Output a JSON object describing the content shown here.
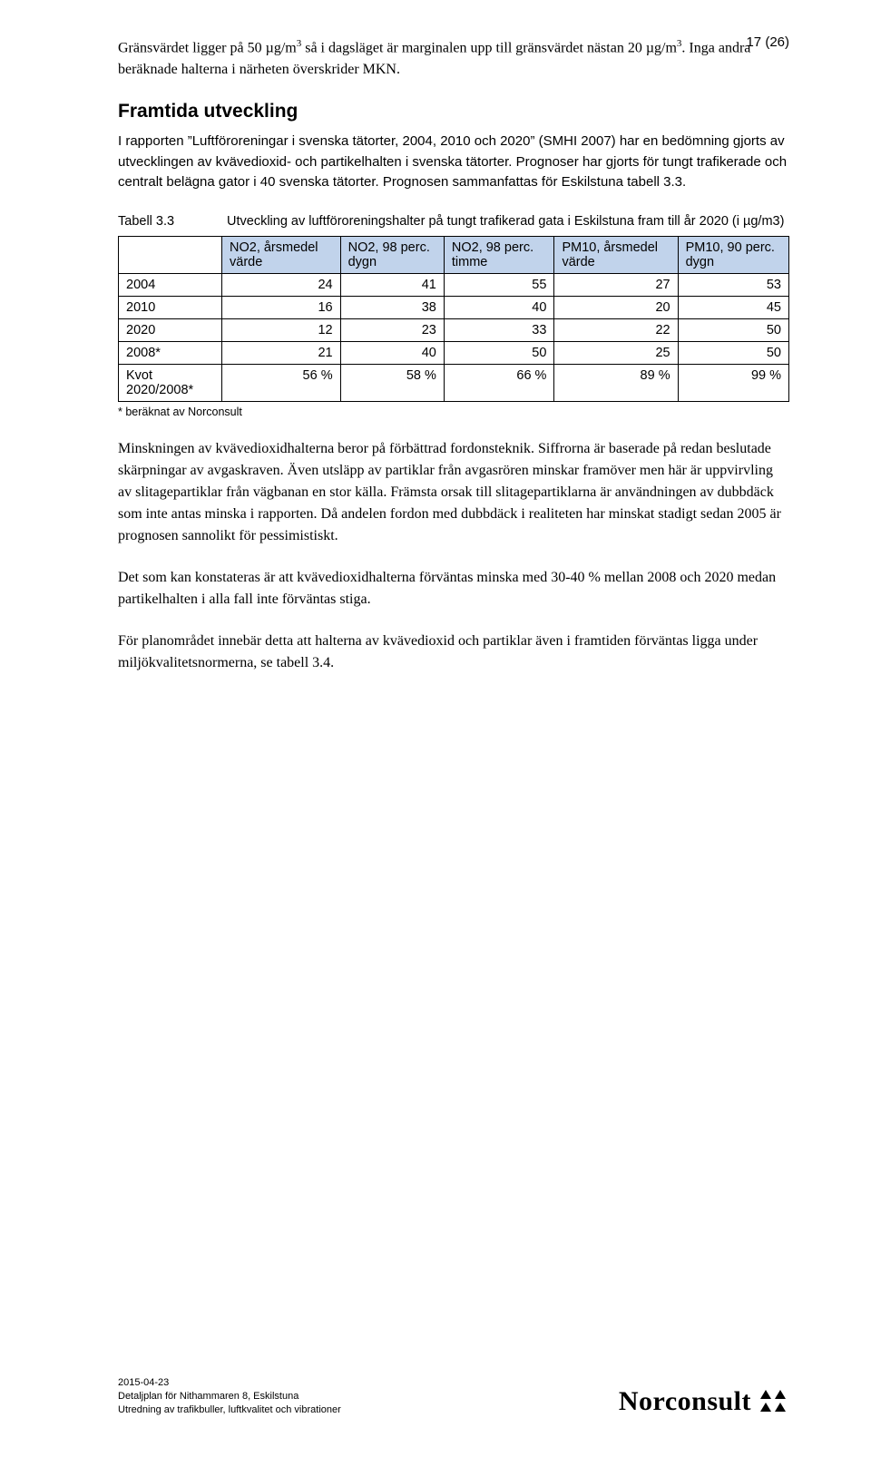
{
  "page_number": "17 (26)",
  "intro_para_html": "Gränsvärdet ligger på 50 µg/m<span class='sup'>3</span> så i dagsläget är marginalen upp till gränsvärdet nästan 20 µg/m<span class='sup'>3</span>. Inga andra beräknade halterna i närheten överskrider MKN.",
  "section_heading": "Framtida utveckling",
  "section_para": "I rapporten ”Luftföroreningar i svenska tätorter, 2004, 2010 och 2020” (SMHI 2007) har en bedömning gjorts av utvecklingen av kvävedioxid- och partikelhalten i svenska tätorter. Prognoser har gjorts för tungt trafikerade och centralt belägna gator i 40 svenska tätorter. Prognosen sammanfattas för Eskilstuna tabell 3.3.",
  "table": {
    "label": "Tabell 3.3",
    "caption_html": "Utveckling av luftföroreningshalter på tungt trafikerad gata i Eskilstuna fram till år 2020 (i µg/m<span class='sup'>3</span>)",
    "header_bg": "#c1d3eb",
    "border_color": "#000000",
    "columns": [
      "NO2, årsmedel värde",
      "NO2, 98 perc. dygn",
      "NO2, 98 perc. timme",
      "PM10, årsmedel värde",
      "PM10, 90 perc. dygn"
    ],
    "rows": [
      {
        "label": "2004",
        "vals": [
          "24",
          "41",
          "55",
          "27",
          "53"
        ]
      },
      {
        "label": "2010",
        "vals": [
          "16",
          "38",
          "40",
          "20",
          "45"
        ]
      },
      {
        "label": "2020",
        "vals": [
          "12",
          "23",
          "33",
          "22",
          "50"
        ]
      },
      {
        "label": "2008*",
        "vals": [
          "21",
          "40",
          "50",
          "25",
          "50"
        ]
      },
      {
        "label": "Kvot 2020/2008*",
        "vals": [
          "56 %",
          "58 %",
          "66 %",
          "89 %",
          "99 %"
        ]
      }
    ],
    "footnote": "* beräknat av Norconsult"
  },
  "body_paras": [
    "Minskningen av kvävedioxidhalterna beror på förbättrad fordonsteknik. Siffrorna är baserade på redan beslutade skärpningar av avgaskraven. Även utsläpp av partiklar från avgasrören minskar framöver men här är uppvirvling av slitagepartiklar från vägbanan en stor källa. Främsta orsak till slitagepartiklarna är användningen av dubbdäck som inte antas minska i rapporten. Då andelen fordon med dubbdäck i realiteten har minskat stadigt sedan 2005 är prognosen sannolikt för pessimistiskt.",
    "Det som kan konstateras är att kvävedioxidhalterna förväntas minska med 30-40 % mellan 2008 och 2020 medan partikelhalten i alla fall inte förväntas stiga.",
    "För planområdet innebär detta att halterna av kvävedioxid och partiklar även i framtiden förväntas ligga under miljökvalitetsnormerna, se tabell 3.4."
  ],
  "footer": {
    "line1": "2015-04-23",
    "line2": "Detaljplan för Nithammaren 8, Eskilstuna",
    "line3": "Utredning av trafikbuller, luftkvalitet och vibrationer",
    "logo_text": "Norconsult",
    "logo_mark_color": "#000000"
  }
}
